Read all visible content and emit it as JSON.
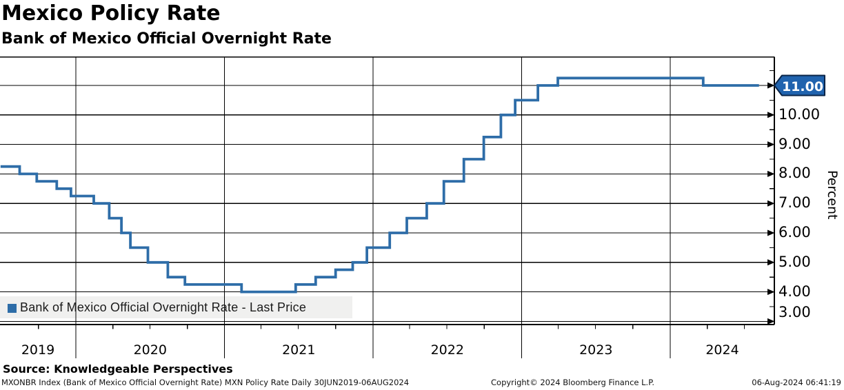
{
  "header": {
    "title": "Mexico Policy Rate",
    "subtitle": "Bank of Mexico Official Overnight Rate"
  },
  "chart_data": {
    "type": "line",
    "step_style": true,
    "title": "Mexico Policy Rate",
    "subtitle": "Bank of Mexico Official Overnight Rate",
    "xlabel": "",
    "ylabel": "Percent",
    "ylim": [
      2.5,
      12.0
    ],
    "y_major_ticks": [
      3,
      4,
      5,
      6,
      7,
      8,
      9,
      10,
      11
    ],
    "y_minor_tick_interval": 0.5,
    "x_range_dates": [
      "2019-06-30",
      "2024-09-13"
    ],
    "x_year_labels": [
      "2019",
      "2020",
      "2021",
      "2022",
      "2023",
      "2024"
    ],
    "grid": true,
    "legend_position": "bottom-left",
    "last_price_badge": "11.00",
    "series": [
      {
        "name": "Bank of Mexico Official Overnight Rate - Last Price",
        "color": "#2e6da8",
        "steps": [
          [
            "2019-06-30",
            8.25
          ],
          [
            "2019-08-16",
            8.0
          ],
          [
            "2019-09-27",
            7.75
          ],
          [
            "2019-11-15",
            7.5
          ],
          [
            "2019-12-20",
            7.25
          ],
          [
            "2020-02-14",
            7.0
          ],
          [
            "2020-03-23",
            6.5
          ],
          [
            "2020-04-22",
            6.0
          ],
          [
            "2020-05-14",
            5.5
          ],
          [
            "2020-06-26",
            5.0
          ],
          [
            "2020-08-14",
            4.5
          ],
          [
            "2020-09-25",
            4.25
          ],
          [
            "2021-02-12",
            4.0
          ],
          [
            "2021-06-25",
            4.25
          ],
          [
            "2021-08-13",
            4.5
          ],
          [
            "2021-10-01",
            4.75
          ],
          [
            "2021-11-12",
            5.0
          ],
          [
            "2021-12-17",
            5.5
          ],
          [
            "2022-02-11",
            6.0
          ],
          [
            "2022-03-25",
            6.5
          ],
          [
            "2022-05-13",
            7.0
          ],
          [
            "2022-06-24",
            7.75
          ],
          [
            "2022-08-12",
            8.5
          ],
          [
            "2022-09-30",
            9.25
          ],
          [
            "2022-11-11",
            10.0
          ],
          [
            "2022-12-16",
            10.5
          ],
          [
            "2023-02-10",
            11.0
          ],
          [
            "2023-03-31",
            11.25
          ],
          [
            "2024-03-22",
            11.0
          ],
          [
            "2024-08-06",
            11.0
          ]
        ]
      }
    ]
  },
  "axis": {
    "y_tick_labels": [
      "10.00",
      "9.00",
      "8.00",
      "7.00",
      "6.00",
      "5.00",
      "4.00",
      "3.00"
    ],
    "ylabel": "Percent"
  },
  "legend": {
    "label": "Bank of Mexico Official Overnight Rate - Last Price",
    "marker_color": "#2e6da8"
  },
  "badge": {
    "value": "11.00",
    "fill": "#2063ae",
    "border": "#0a2447",
    "text_color": "#ffffff"
  },
  "footer": {
    "source": "Source: Knowledgeable Perspectives",
    "left": "MXONBR Index (Bank of Mexico Official Overnight Rate) MXN Policy Rate  Daily 30JUN2019-06AUG2024",
    "copyright": "Copyright© 2024 Bloomberg Finance L.P.",
    "timestamp": "06-Aug-2024 06:41:19"
  },
  "colors": {
    "line": "#2e6da8",
    "grid": "#000000",
    "legend_bg": "#f0f0ef"
  }
}
